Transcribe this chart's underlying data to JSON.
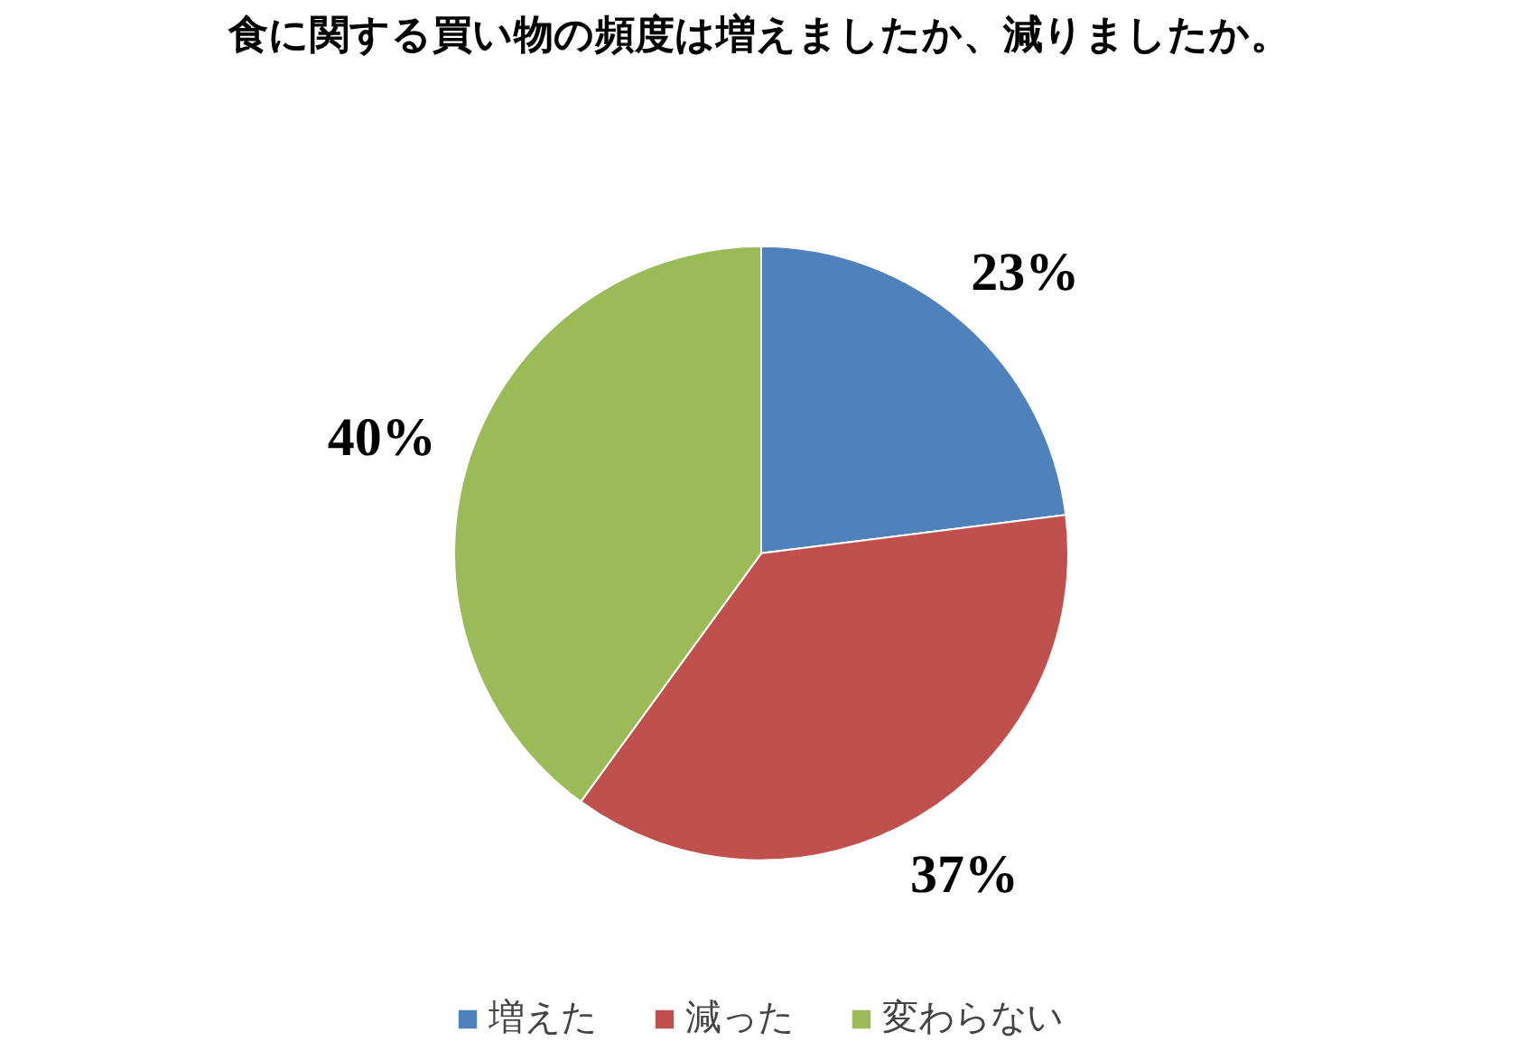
{
  "chart_data": {
    "type": "pie",
    "title": "食に関する買い物の頻度は増えましたか、減りましたか。",
    "categories": [
      "増えた",
      "減った",
      "変わらない"
    ],
    "values": [
      23,
      37,
      40
    ],
    "colors": [
      "#4f81bd",
      "#c0504d",
      "#9bbb59"
    ],
    "value_labels": [
      "23%",
      "37%",
      "40%"
    ],
    "legend": "bottom"
  }
}
